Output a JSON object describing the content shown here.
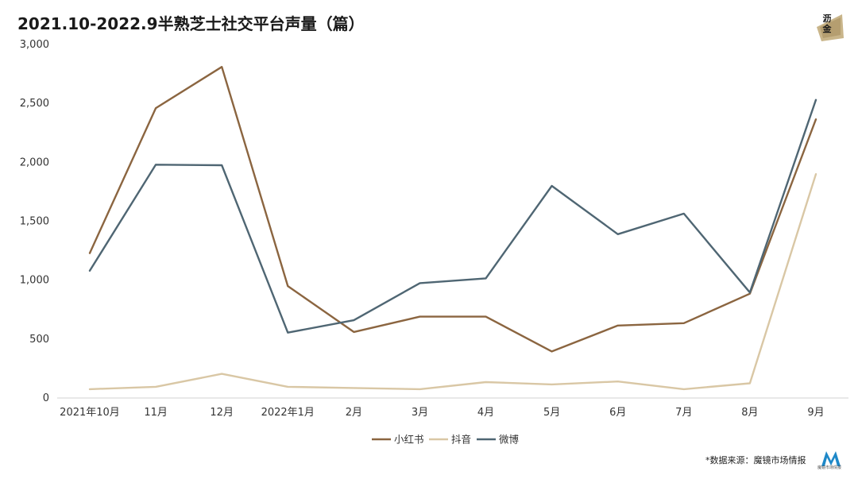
{
  "header": {
    "title": "2021.10-2022.9半熟芝士社交平台声量（篇）",
    "logo_text": [
      "沥",
      "金"
    ]
  },
  "footer": {
    "source_note": "*数据来源：魔镜市场情报",
    "brand_sub": "魔镜市场情报"
  },
  "chart_data": {
    "type": "line",
    "categories": [
      "2021年10月",
      "11月",
      "12月",
      "2022年1月",
      "2月",
      "3月",
      "4月",
      "5月",
      "6月",
      "7月",
      "8月",
      "9月"
    ],
    "series": [
      {
        "name": "小红书",
        "color": "#8b6540",
        "values": [
          1230,
          2460,
          2810,
          950,
          560,
          690,
          690,
          395,
          615,
          635,
          885,
          2365
        ]
      },
      {
        "name": "抖音",
        "color": "#d9c7a5",
        "values": [
          75,
          95,
          205,
          95,
          85,
          75,
          135,
          115,
          140,
          75,
          125,
          1900
        ]
      },
      {
        "name": "微博",
        "color": "#4f6673",
        "values": [
          1080,
          1980,
          1975,
          555,
          660,
          975,
          1015,
          1800,
          1390,
          1565,
          895,
          2530
        ]
      }
    ],
    "ylim": [
      0,
      3000
    ],
    "yticks": [
      "0",
      "500",
      "1,000",
      "1,500",
      "2,000",
      "2,500",
      "3,000"
    ],
    "ytick_values": [
      0,
      500,
      1000,
      1500,
      2000,
      2500,
      3000
    ],
    "grid": false,
    "legend_position": "bottom-center"
  }
}
